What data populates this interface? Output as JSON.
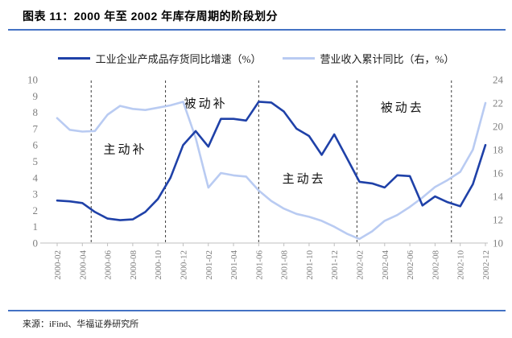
{
  "header": {
    "title": "图表 11：2000 年至 2002 年库存周期的阶段划分"
  },
  "source": "来源：iFind、华福证券研究所",
  "colors": {
    "accent_rule": "#4472C4",
    "series_inventory": "#1F41A8",
    "series_revenue": "#B9CBF2",
    "divider": "#3C3C3C",
    "axis_line": "#BFBFBF",
    "axis_text": "#7F7F7F",
    "annotation_text": "#111111"
  },
  "chart_data": {
    "type": "line",
    "title": "2000 年至 2002 年库存周期的阶段划分",
    "legend_position": "top",
    "grid": false,
    "x_tick_labels": [
      "2000-02",
      "2000-04",
      "2000-06",
      "2000-08",
      "2000-10",
      "2000-12",
      "2001-02",
      "2001-04",
      "2001-06",
      "2001-08",
      "2001-10",
      "2001-12",
      "2002-02",
      "2002-04",
      "2002-06",
      "2002-08",
      "2002-10",
      "2002-12"
    ],
    "x_months_start": "2000-02",
    "x_months_end": "2002-12",
    "left_axis": {
      "label": "",
      "min": 0,
      "max": 10,
      "step": 1,
      "ticks": [
        0,
        1,
        2,
        3,
        4,
        5,
        6,
        7,
        8,
        9,
        10
      ]
    },
    "right_axis": {
      "label": "",
      "min": 10,
      "max": 24,
      "step": 2,
      "ticks": [
        10,
        12,
        14,
        16,
        18,
        20,
        22,
        24
      ]
    },
    "series": [
      {
        "name": "工业企业产成品存货同比增速（%）",
        "axis": "left",
        "color": "#1F41A8",
        "values": [
          2.6,
          2.55,
          2.45,
          1.9,
          1.5,
          1.4,
          1.45,
          1.9,
          2.7,
          4.0,
          6.0,
          6.85,
          5.9,
          7.6,
          7.6,
          7.5,
          8.65,
          8.6,
          8.05,
          7.0,
          6.55,
          5.4,
          6.65,
          5.2,
          3.75,
          3.65,
          3.4,
          4.15,
          4.1,
          2.3,
          2.85,
          2.5,
          2.25,
          3.6,
          6.0
        ]
      },
      {
        "name": "营业收入累计同比（右，%）",
        "axis": "right",
        "color": "#B9CBF2",
        "values": [
          20.7,
          19.7,
          19.55,
          19.6,
          21.0,
          21.75,
          21.5,
          21.4,
          21.6,
          21.8,
          22.1,
          19.0,
          14.75,
          16.0,
          15.8,
          15.7,
          14.5,
          13.6,
          12.95,
          12.5,
          12.25,
          11.9,
          11.4,
          10.8,
          10.35,
          11.0,
          11.9,
          12.4,
          13.1,
          13.9,
          14.8,
          15.4,
          16.1,
          18.0,
          22.0
        ]
      }
    ],
    "dividers_m": [
      2.7,
      8.6,
      16.0,
      23.8,
      31.3
    ],
    "phases": [
      {
        "label": "主动补",
        "start_m": 2.7,
        "end_m": 8.6,
        "label_m": 5.4,
        "label_v": 5.75
      },
      {
        "label": "被动补",
        "start_m": 8.6,
        "end_m": 16.0,
        "label_m": 11.8,
        "label_v": 8.55
      },
      {
        "label": "主动去",
        "start_m": 16.0,
        "end_m": 23.8,
        "label_m": 19.6,
        "label_v": 3.95
      },
      {
        "label": "被动去",
        "start_m": 23.8,
        "end_m": 31.3,
        "label_m": 27.4,
        "label_v": 8.3
      }
    ]
  }
}
